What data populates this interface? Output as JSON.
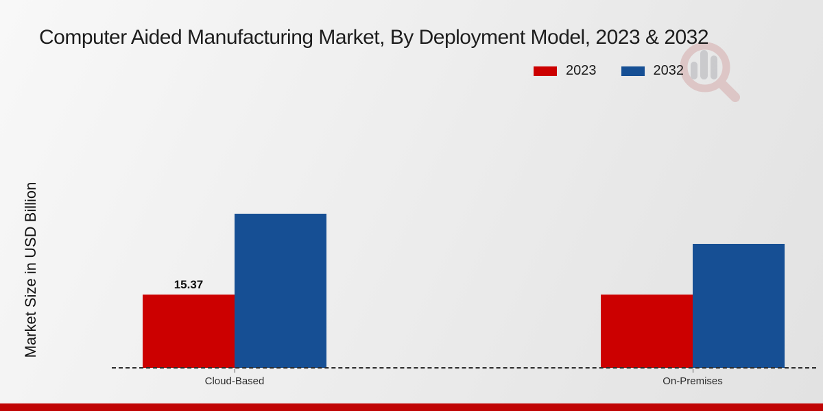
{
  "title": "Computer Aided Manufacturing Market, By Deployment Model, 2023 & 2032",
  "legend": {
    "items": [
      {
        "label": "2023",
        "color": "#cc0000"
      },
      {
        "label": "2032",
        "color": "#164f94"
      }
    ]
  },
  "chart_data": {
    "type": "bar",
    "title": "Computer Aided Manufacturing Market, By Deployment Model, 2023 & 2032",
    "categories": [
      "Cloud-Based",
      "On-Premises"
    ],
    "series": [
      {
        "name": "2023",
        "color": "#cc0000",
        "values": [
          15.37,
          15.4
        ]
      },
      {
        "name": "2032",
        "color": "#164f94",
        "values": [
          32.3,
          26.0
        ]
      }
    ],
    "xlabel": "",
    "ylabel": "Market Size in USD Billion",
    "ylim": [
      0,
      35
    ],
    "grid": false,
    "legend_position": "top-right",
    "baseline_style": "dashed",
    "bar_labels": [
      {
        "category": 0,
        "series": 0,
        "text": "15.37"
      }
    ]
  },
  "watermark": {
    "name": "magnifier-bar-chart-logo"
  },
  "colors": {
    "bar_red": "#cc0000",
    "bar_blue": "#164f94",
    "footer_bar": "#c00404",
    "title_text": "#1d1d1d",
    "background_light": "#f8f8f8",
    "background_dark": "#e2e2e2"
  }
}
